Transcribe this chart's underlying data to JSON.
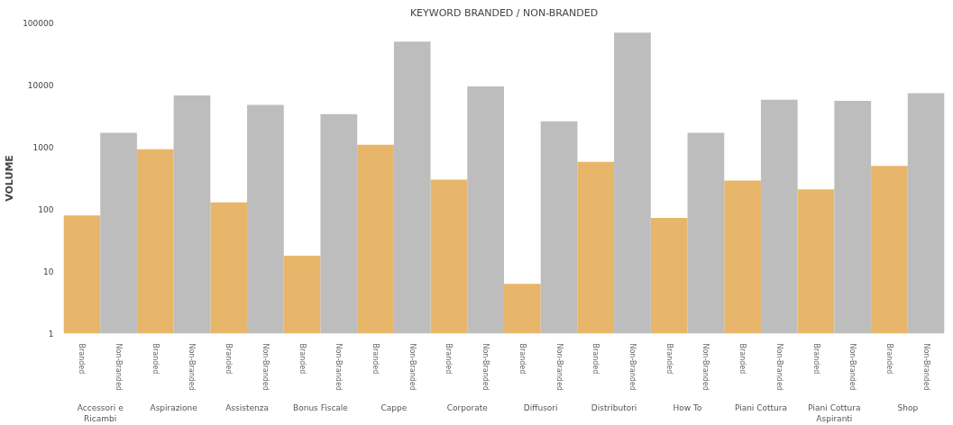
{
  "chart_data": {
    "type": "bar",
    "title": "KEYWORD BRANDED / NON-BRANDED",
    "ylabel": "VOLUME",
    "categories": [
      "Accessori e Ricambi",
      "Aspirazione",
      "Assistenza",
      "Bonus Fiscale",
      "Cappe",
      "Corporate",
      "Diffusori",
      "Distributori",
      "How To",
      "Piani Cottura",
      "Piani Cottura Aspiranti",
      "Shop"
    ],
    "series": [
      {
        "name": "Branded",
        "color": "#e8b66a",
        "values": [
          80,
          930,
          130,
          18,
          1100,
          300,
          6.3,
          580,
          73,
          290,
          210,
          500
        ]
      },
      {
        "name": "Non-Branded",
        "color": "#bdbdbd",
        "values": [
          1700,
          6800,
          4800,
          3400,
          50000,
          9500,
          2600,
          70000,
          1700,
          5800,
          5600,
          7400
        ]
      }
    ],
    "log": true,
    "ylim": [
      1,
      100000
    ],
    "yticks": [
      1,
      10,
      100,
      1000,
      10000,
      100000
    ],
    "grid": false
  }
}
